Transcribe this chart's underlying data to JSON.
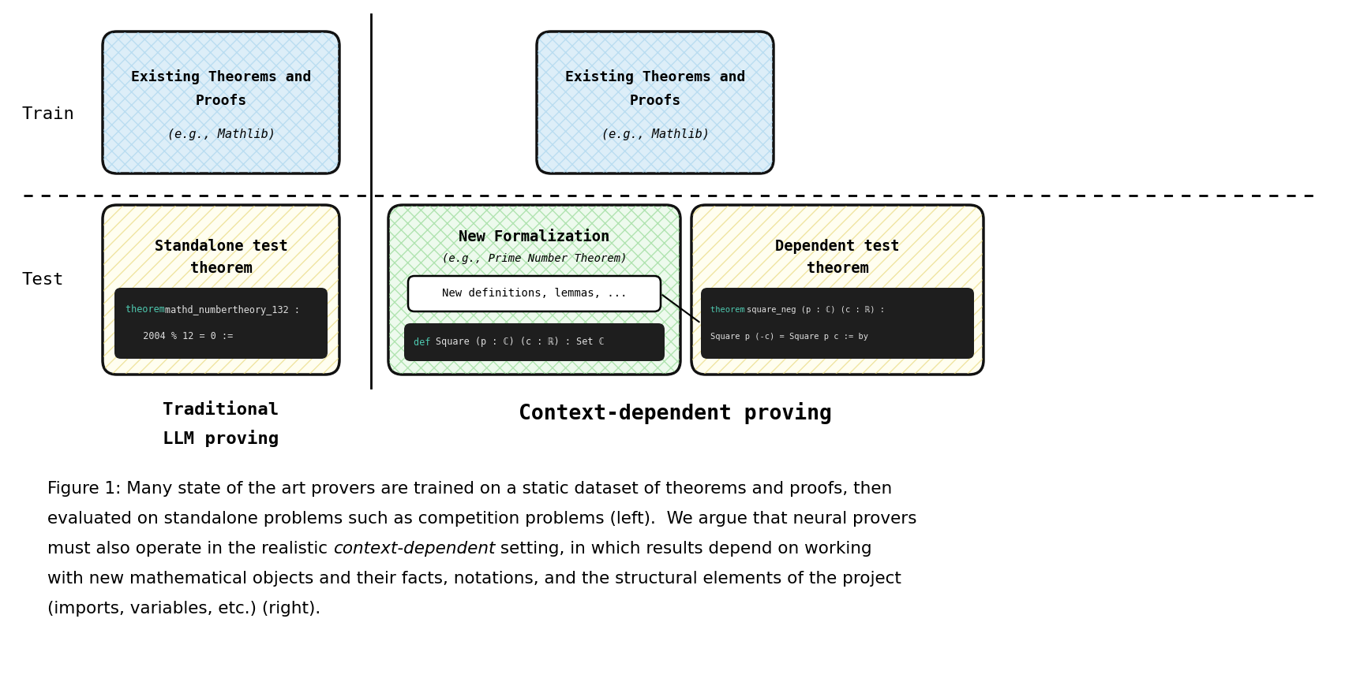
{
  "bg_color": "#ffffff",
  "fig_width": 17.04,
  "fig_height": 8.84,
  "train_label": "Train",
  "test_label": "Test",
  "trad_label_line1": "Traditional",
  "trad_label_line2": "LLM proving",
  "ctx_label": "Context-dependent proving",
  "left_train_title1": "Existing Theorems and",
  "left_train_title2": "Proofs",
  "left_train_sub": "(e.g., Mathlib)",
  "right_train_title1": "Existing Theorems and",
  "right_train_title2": "Proofs",
  "right_train_sub": "(e.g., Mathlib)",
  "standalone_line1": "Standalone test",
  "standalone_line2": "theorem",
  "newform_line1": "New Formalization",
  "newform_line2": "(e.g., Prime Number Theorem)",
  "newdef_text": "New definitions, lemmas, ...",
  "newform_code_keyword": "def ",
  "newform_code_rest": "Square (p : ℂ) (c : ℝ) : Set ℂ",
  "dependent_line1": "Dependent test",
  "dependent_line2": "theorem",
  "dep_code_kw": "theorem ",
  "dep_code_line1": "square_neg (p : ℂ) (c : ℝ) :",
  "dep_code_line2": "Square p (-c) = Square p c := by",
  "standalone_code_kw": "theorem ",
  "standalone_code_name": "mathd_numbertheory_132 :",
  "standalone_code_line2": "  2004 % 12 = 0 :=",
  "blue_bg": "#ddeef8",
  "blue_hatch": "#a8d4ee",
  "yellow_bg": "#fffef0",
  "yellow_hatch": "#e8d878",
  "green_bg": "#edfaed",
  "green_hatch": "#90d890",
  "white_box_bg": "#ffffff",
  "code_bg": "#1e1e1e",
  "kw_color": "#4ec9b0",
  "code_white": "#e0e0e0",
  "caption_line1": "Figure 1: Many state of the art provers are trained on a static dataset of theorems and proofs, then",
  "caption_line2": "evaluated on standalone problems such as competition problems (left).  We argue that neural provers",
  "caption_line3a": "must also operate in the realistic ",
  "caption_line3b": "context-dependent",
  "caption_line3c": " setting, in which results depend on working",
  "caption_line4": "with new mathematical objects and their facts, notations, and the structural elements of the project",
  "caption_line5": "(imports, variables, etc.) (right)."
}
